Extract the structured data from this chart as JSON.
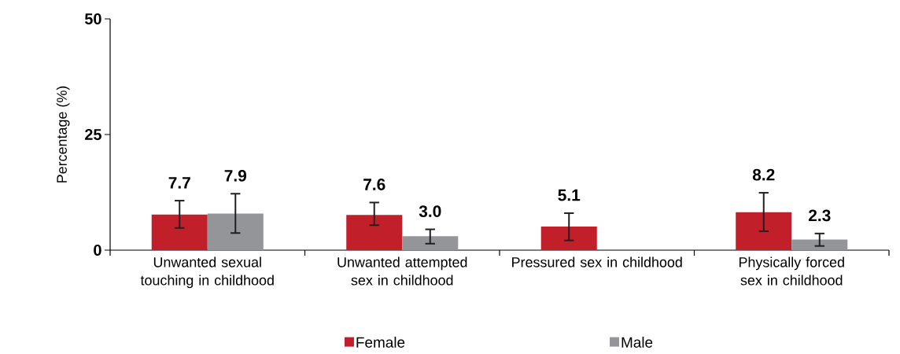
{
  "chart_data": {
    "type": "bar",
    "ylabel": "Percentage (%)",
    "categories": [
      "Unwanted sexual touching in childhood",
      "Unwanted attempted sex in childhood",
      "Pressured sex in childhood",
      "Physically forced sex in childhood"
    ],
    "series": [
      {
        "name": "Female",
        "color": "#c1202a",
        "values": [
          7.7,
          7.6,
          5.1,
          8.2
        ],
        "value_labels": [
          "7.7",
          "7.6",
          "5.1",
          "8.2"
        ],
        "errors": [
          [
            4.8,
            10.7
          ],
          [
            5.4,
            10.3
          ],
          [
            2.1,
            8.0
          ],
          [
            4.1,
            12.4
          ]
        ]
      },
      {
        "name": "Male",
        "color": "#939598",
        "values": [
          7.9,
          3.0,
          null,
          2.3
        ],
        "value_labels": [
          "7.9",
          "3.0",
          null,
          "2.3"
        ],
        "errors": [
          [
            3.7,
            12.2
          ],
          [
            1.4,
            4.5
          ],
          null,
          [
            0.9,
            3.6
          ]
        ]
      }
    ],
    "ylim": [
      0,
      50
    ],
    "yticks": [
      0,
      25,
      50
    ],
    "grid": false,
    "legend": "bottom"
  }
}
